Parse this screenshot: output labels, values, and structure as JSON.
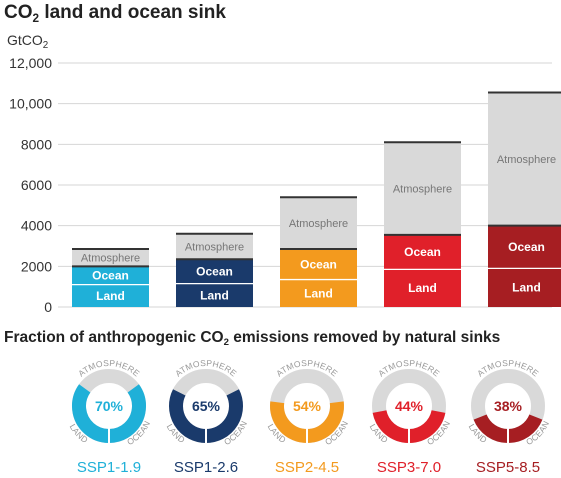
{
  "title": {
    "main": "CO",
    "sub": "2",
    "rest": " land and ocean sink"
  },
  "unit": {
    "main": "GtCO",
    "sub": "2"
  },
  "fraction_title": {
    "main": "Fraction of anthropogenic CO",
    "sub": "2",
    "rest": " emissions removed by natural sinks"
  },
  "ring_labels": {
    "atmosphere": "ATMOSPHERE",
    "land": "LAND",
    "ocean": "OCEAN"
  },
  "colors": {
    "atmosphere": "#d9d9d9",
    "scenarios": [
      "#1fb0d8",
      "#1a3a6b",
      "#f39a1e",
      "#e0202a",
      "#a61e22"
    ]
  },
  "chart_data": [
    {
      "type": "bar",
      "stacked": true,
      "title": "CO2 land and ocean sink",
      "ylabel": "GtCO2",
      "ylim": [
        0,
        12000
      ],
      "yticks": [
        "0",
        "2000",
        "4000",
        "6000",
        "8000",
        "10,000",
        "12,000"
      ],
      "grid": true,
      "categories": [
        "SSP1-1.9",
        "SSP1-2.6",
        "SSP2-4.5",
        "SSP3-7.0",
        "SSP5-8.5"
      ],
      "series": [
        {
          "name": "Land",
          "values": [
            1100,
            1150,
            1350,
            1850,
            1900
          ]
        },
        {
          "name": "Ocean",
          "values": [
            900,
            1200,
            1500,
            1700,
            2100
          ]
        },
        {
          "name": "Atmosphere",
          "values": [
            850,
            1250,
            2550,
            4550,
            6550
          ]
        }
      ],
      "totals": [
        2850,
        3600,
        5400,
        8100,
        10550
      ]
    },
    {
      "type": "pie",
      "title": "Fraction of anthropogenic CO2 emissions removed by natural sinks",
      "categories": [
        "SSP1-1.9",
        "SSP1-2.6",
        "SSP2-4.5",
        "SSP3-7.0",
        "SSP5-8.5"
      ],
      "values": [
        70,
        65,
        54,
        44,
        38
      ],
      "labels": [
        "70%",
        "65%",
        "54%",
        "44%",
        "38%"
      ]
    }
  ]
}
